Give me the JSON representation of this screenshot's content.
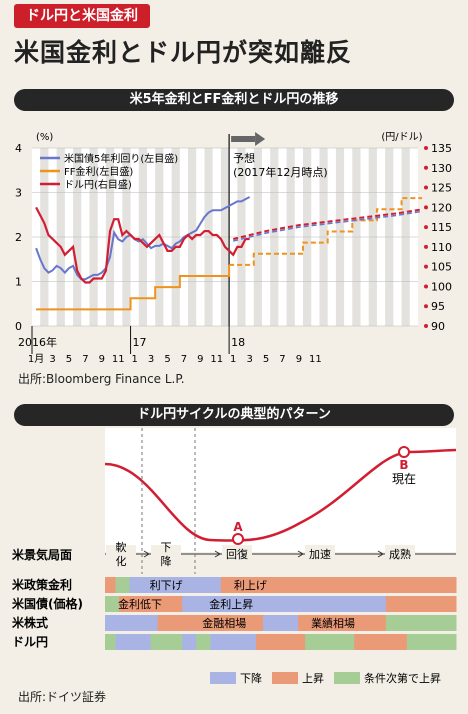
{
  "header": {
    "tag": "ドル円と米国金利",
    "title": "米国金利とドル円が突如離反"
  },
  "chart1": {
    "subtitle": "米5年金利とFF金利とドル円の推移",
    "source": "出所:Bloomberg Finance L.P."
  },
  "chart2": {
    "subtitle": "ドル円サイクルの典型的パターン",
    "source": "出所:ドイツ証券"
  },
  "chart_data": [
    {
      "type": "line",
      "title": "米5年金利とFF金利とドル円の推移",
      "left_unit": "(%)",
      "right_unit": "(円/ドル)",
      "x_labels": [
        "1月",
        "3",
        "5",
        "7",
        "9",
        "11",
        "1",
        "3",
        "5",
        "7",
        "9",
        "11",
        "1",
        "3",
        "5",
        "7",
        "9",
        "11"
      ],
      "year_labels": [
        "2016年",
        "17",
        "18"
      ],
      "left_ticks": [
        "0",
        "1",
        "2",
        "3",
        "4"
      ],
      "right_ticks": [
        "90",
        "95",
        "100",
        "105",
        "110",
        "115",
        "120",
        "125",
        "130",
        "135"
      ],
      "ylim_left": [
        0,
        4
      ],
      "ylim_right": [
        90,
        135
      ],
      "forecast_label": [
        "予想",
        "(2017年12月時点)"
      ],
      "series": [
        {
          "name": "米国債5年利回り(左目盛)",
          "axis": "left",
          "color": "#6677cc",
          "x": [
            0,
            0.5,
            1,
            1.5,
            2,
            2.5,
            3,
            3.5,
            4,
            4.5,
            5,
            5.5,
            6,
            6.5,
            7,
            7.5,
            8,
            8.5,
            9,
            9.5,
            10,
            10.5,
            11,
            11.5,
            12,
            12.5,
            13,
            13.5,
            14,
            14.5,
            15,
            15.5,
            16,
            16.5,
            17,
            17.5,
            18,
            18.5,
            19,
            19.5,
            20,
            20.5,
            21,
            21.5,
            22,
            22.5,
            23,
            23.5,
            24,
            24.5,
            25,
            25.5,
            26
          ],
          "y": [
            1.75,
            1.5,
            1.3,
            1.2,
            1.25,
            1.35,
            1.3,
            1.2,
            1.3,
            1.35,
            1.15,
            1.05,
            1.05,
            1.1,
            1.15,
            1.15,
            1.2,
            1.3,
            1.55,
            2.1,
            1.95,
            1.9,
            2.0,
            2.05,
            1.95,
            1.9,
            1.95,
            1.85,
            1.75,
            1.8,
            1.8,
            1.85,
            1.8,
            1.75,
            1.85,
            1.9,
            2.0,
            2.05,
            2.1,
            2.15,
            2.3,
            2.45,
            2.55,
            2.6,
            2.6,
            2.6,
            2.65,
            2.7,
            2.75,
            2.8,
            2.8,
            2.85,
            2.9
          ]
        },
        {
          "name": "FF金利(左目盛)",
          "axis": "left",
          "color": "#f0921e",
          "x": [
            0,
            11.5,
            11.5,
            14.5,
            14.5,
            17.5,
            17.5,
            23.5,
            23.5,
            26.5,
            26.5,
            29.5,
            29.5,
            32.5,
            32.5,
            35.5,
            35.5,
            38.5,
            38.5,
            41.5,
            41.5,
            44.5,
            44.5,
            47
          ],
          "y": [
            0.375,
            0.375,
            0.625,
            0.625,
            0.875,
            0.875,
            1.125,
            1.125,
            1.375,
            1.375,
            1.625,
            1.625,
            1.625,
            1.625,
            1.875,
            1.875,
            2.125,
            2.125,
            2.375,
            2.375,
            2.625,
            2.625,
            2.875,
            2.875
          ],
          "forecast_from": 24.5
        },
        {
          "name": "ドル円(右目盛)",
          "axis": "right",
          "color": "#d21e32",
          "x": [
            0,
            0.5,
            1,
            1.5,
            2,
            2.5,
            3,
            3.5,
            4,
            4.5,
            5,
            5.5,
            6,
            6.5,
            7,
            7.5,
            8,
            8.5,
            9,
            9.5,
            10,
            10.5,
            11,
            11.5,
            12,
            12.5,
            13,
            13.5,
            14,
            14.5,
            15,
            15.5,
            16,
            16.5,
            17,
            17.5,
            18,
            18.5,
            19,
            19.5,
            20,
            20.5,
            21,
            21.5,
            22,
            22.5,
            23,
            23.5,
            24,
            24.5,
            25,
            25.5,
            26
          ],
          "y": [
            120,
            118,
            116,
            113,
            112,
            111,
            110,
            108,
            109,
            110,
            104,
            102,
            101,
            101,
            102,
            102,
            102,
            104,
            114,
            117,
            117,
            113,
            114,
            113,
            112,
            112,
            111,
            110,
            111,
            112,
            113,
            111,
            109,
            109,
            110,
            110,
            112,
            113,
            112,
            113,
            113,
            114,
            114,
            113,
            113,
            112,
            110,
            109,
            108,
            110,
            110,
            112,
            112
          ],
          "forecast_x": [
            24,
            28,
            32,
            36,
            40,
            44,
            47
          ],
          "forecast_y": [
            112,
            114,
            115.5,
            116.5,
            117.5,
            118.5,
            119.5
          ]
        }
      ]
    },
    {
      "type": "diagram",
      "title": "ドル円サイクルの典型的パターン",
      "points": [
        {
          "label": "A"
        },
        {
          "label": "B",
          "note": "現在"
        }
      ],
      "phases": [
        "軟化",
        "下降",
        "回復",
        "加速",
        "成熟"
      ],
      "phase_row_label": "米景気局面",
      "rows": [
        {
          "label": "米政策金利",
          "segments": [
            {
              "w": 3,
              "c": "up"
            },
            {
              "w": 4,
              "c": "cond"
            },
            {
              "w": 26,
              "c": "down"
            },
            {
              "w": 43,
              "c": "up"
            },
            {
              "w": 24,
              "c": "up"
            }
          ],
          "texts": [
            {
              "t": "利下げ",
              "at": 11
            },
            {
              "t": "利上げ",
              "at": 35
            }
          ]
        },
        {
          "label": "米国債(価格)",
          "segments": [
            {
              "w": 4,
              "c": "cond"
            },
            {
              "w": 18,
              "c": "up"
            },
            {
              "w": 58,
              "c": "down"
            },
            {
              "w": 20,
              "c": "up"
            }
          ],
          "texts": [
            {
              "t": "金利低下",
              "at": 2
            },
            {
              "t": "金利上昇",
              "at": 28
            }
          ]
        },
        {
          "label": "米株式",
          "segments": [
            {
              "w": 15,
              "c": "down"
            },
            {
              "w": 30,
              "c": "up"
            },
            {
              "w": 10,
              "c": "down"
            },
            {
              "w": 25,
              "c": "up"
            },
            {
              "w": 20,
              "c": "cond"
            }
          ],
          "texts": [
            {
              "t": "金融相場",
              "at": 26
            },
            {
              "t": "業績相場",
              "at": 57
            }
          ]
        },
        {
          "label": "ドル円",
          "segments": [
            {
              "w": 3,
              "c": "cond"
            },
            {
              "w": 10,
              "c": "down"
            },
            {
              "w": 9,
              "c": "cond"
            },
            {
              "w": 4,
              "c": "down"
            },
            {
              "w": 4,
              "c": "cond"
            },
            {
              "w": 13,
              "c": "down"
            },
            {
              "w": 14,
              "c": "up"
            },
            {
              "w": 14,
              "c": "cond"
            },
            {
              "w": 15,
              "c": "up"
            },
            {
              "w": 14,
              "c": "cond"
            }
          ],
          "texts": []
        }
      ],
      "legend": [
        {
          "key": "down",
          "label": "下降",
          "color": "#a9b4e4"
        },
        {
          "key": "up",
          "label": "上昇",
          "color": "#eb9a77"
        },
        {
          "key": "cond",
          "label": "条件次第で上昇",
          "color": "#a5cd95"
        }
      ]
    }
  ]
}
